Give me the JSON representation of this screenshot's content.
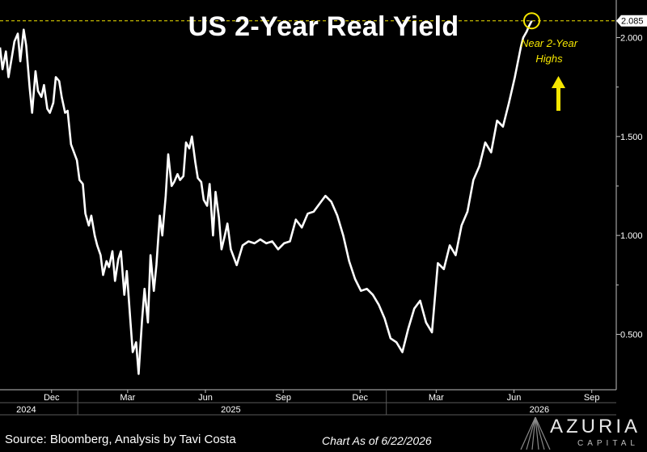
{
  "title": "US 2-Year Real Yield",
  "annotation": {
    "line1": "Near 2-Year",
    "line2": "Highs"
  },
  "footer": {
    "source": "Source: Bloomberg, Analysis by Tavi Costa",
    "as_of": "Chart As of 6/22/2026"
  },
  "logo": {
    "name": "AZURIA",
    "sub": "CAPITAL"
  },
  "colors": {
    "background": "#000000",
    "line": "#ffffff",
    "highlight": "#f5e600",
    "dashed": "#f5e600"
  },
  "chart_data": {
    "type": "line",
    "title": "US 2-Year Real Yield",
    "ylim": [
      0.22,
      2.19
    ],
    "y_ticks": [
      0.5,
      1.0,
      1.5,
      2.0
    ],
    "y_tick_labels": [
      "0.500",
      "1.000",
      "1.500",
      "2.000"
    ],
    "last_value": 2.085,
    "last_value_label": "2.085",
    "x_axis": {
      "start": "2024-10-01",
      "end": "2026-09-30",
      "month_ticks": [
        {
          "date": "2024-12-01",
          "label": "Dec"
        },
        {
          "date": "2025-03-01",
          "label": "Mar"
        },
        {
          "date": "2025-06-01",
          "label": "Jun"
        },
        {
          "date": "2025-09-01",
          "label": "Sep"
        },
        {
          "date": "2025-12-01",
          "label": "Dec"
        },
        {
          "date": "2026-03-01",
          "label": "Mar"
        },
        {
          "date": "2026-06-01",
          "label": "Jun"
        },
        {
          "date": "2026-09-01",
          "label": "Sep"
        }
      ],
      "year_labels": [
        {
          "date": "2024-11-01",
          "label": "2024"
        },
        {
          "date": "2025-07-01",
          "label": "2025"
        },
        {
          "date": "2026-07-01",
          "label": "2026"
        }
      ]
    },
    "grid": false,
    "legend": "none",
    "series": [
      {
        "x": [
          "2024-10-01",
          "2024-10-04",
          "2024-10-08",
          "2024-10-11",
          "2024-10-15",
          "2024-10-18",
          "2024-10-22",
          "2024-10-25",
          "2024-10-29",
          "2024-11-01",
          "2024-11-05",
          "2024-11-08",
          "2024-11-12",
          "2024-11-15",
          "2024-11-19",
          "2024-11-22",
          "2024-11-26",
          "2024-11-29",
          "2024-12-03",
          "2024-12-06",
          "2024-12-10",
          "2024-12-13",
          "2024-12-17",
          "2024-12-20",
          "2024-12-24",
          "2024-12-31",
          "2025-01-03",
          "2025-01-07",
          "2025-01-10",
          "2025-01-14",
          "2025-01-17",
          "2025-01-21",
          "2025-01-24",
          "2025-01-28",
          "2025-01-31",
          "2025-02-04",
          "2025-02-07",
          "2025-02-11",
          "2025-02-14",
          "2025-02-18",
          "2025-02-21",
          "2025-02-25",
          "2025-02-28",
          "2025-03-04",
          "2025-03-07",
          "2025-03-11",
          "2025-03-14",
          "2025-03-18",
          "2025-03-21",
          "2025-03-25",
          "2025-03-28",
          "2025-04-01",
          "2025-04-04",
          "2025-04-08",
          "2025-04-11",
          "2025-04-15",
          "2025-04-18",
          "2025-04-22",
          "2025-04-25",
          "2025-04-29",
          "2025-05-02",
          "2025-05-06",
          "2025-05-09",
          "2025-05-13",
          "2025-05-16",
          "2025-05-20",
          "2025-05-23",
          "2025-05-27",
          "2025-05-30",
          "2025-06-03",
          "2025-06-06",
          "2025-06-10",
          "2025-06-13",
          "2025-06-17",
          "2025-06-20",
          "2025-06-24",
          "2025-06-27",
          "2025-07-01",
          "2025-07-08",
          "2025-07-15",
          "2025-07-22",
          "2025-07-29",
          "2025-08-05",
          "2025-08-12",
          "2025-08-19",
          "2025-08-26",
          "2025-09-02",
          "2025-09-09",
          "2025-09-16",
          "2025-09-23",
          "2025-09-30",
          "2025-10-07",
          "2025-10-14",
          "2025-10-21",
          "2025-10-28",
          "2025-11-04",
          "2025-11-11",
          "2025-11-18",
          "2025-11-25",
          "2025-12-02",
          "2025-12-09",
          "2025-12-16",
          "2025-12-23",
          "2025-12-30",
          "2026-01-06",
          "2026-01-13",
          "2026-01-20",
          "2026-01-27",
          "2026-02-03",
          "2026-02-10",
          "2026-02-17",
          "2026-02-24",
          "2026-03-03",
          "2026-03-10",
          "2026-03-17",
          "2026-03-24",
          "2026-03-31",
          "2026-04-07",
          "2026-04-14",
          "2026-04-21",
          "2026-04-28",
          "2026-05-05",
          "2026-05-12",
          "2026-05-19",
          "2026-05-26",
          "2026-06-02",
          "2026-06-09",
          "2026-06-12",
          "2026-06-16",
          "2026-06-19",
          "2026-06-22"
        ],
        "y": [
          1.95,
          1.84,
          1.93,
          1.8,
          1.9,
          1.98,
          2.02,
          1.88,
          2.04,
          1.96,
          1.75,
          1.62,
          1.83,
          1.73,
          1.7,
          1.76,
          1.64,
          1.62,
          1.67,
          1.8,
          1.78,
          1.7,
          1.62,
          1.63,
          1.46,
          1.38,
          1.28,
          1.26,
          1.11,
          1.05,
          1.1,
          1.0,
          0.95,
          0.9,
          0.8,
          0.87,
          0.84,
          0.92,
          0.77,
          0.88,
          0.92,
          0.7,
          0.82,
          0.58,
          0.41,
          0.46,
          0.3,
          0.57,
          0.73,
          0.56,
          0.9,
          0.72,
          0.85,
          1.1,
          1.0,
          1.2,
          1.41,
          1.25,
          1.27,
          1.31,
          1.28,
          1.3,
          1.47,
          1.44,
          1.5,
          1.37,
          1.29,
          1.27,
          1.18,
          1.15,
          1.26,
          1.0,
          1.22,
          1.09,
          0.93,
          1.0,
          1.06,
          0.93,
          0.85,
          0.95,
          0.97,
          0.96,
          0.98,
          0.96,
          0.97,
          0.93,
          0.96,
          0.97,
          1.08,
          1.04,
          1.11,
          1.12,
          1.16,
          1.2,
          1.17,
          1.1,
          1.0,
          0.87,
          0.78,
          0.72,
          0.73,
          0.7,
          0.65,
          0.58,
          0.48,
          0.46,
          0.41,
          0.53,
          0.63,
          0.67,
          0.56,
          0.51,
          0.86,
          0.83,
          0.95,
          0.9,
          1.05,
          1.12,
          1.28,
          1.35,
          1.47,
          1.42,
          1.58,
          1.55,
          1.67,
          1.8,
          1.95,
          2.0,
          2.03,
          2.06,
          2.085
        ]
      }
    ]
  }
}
